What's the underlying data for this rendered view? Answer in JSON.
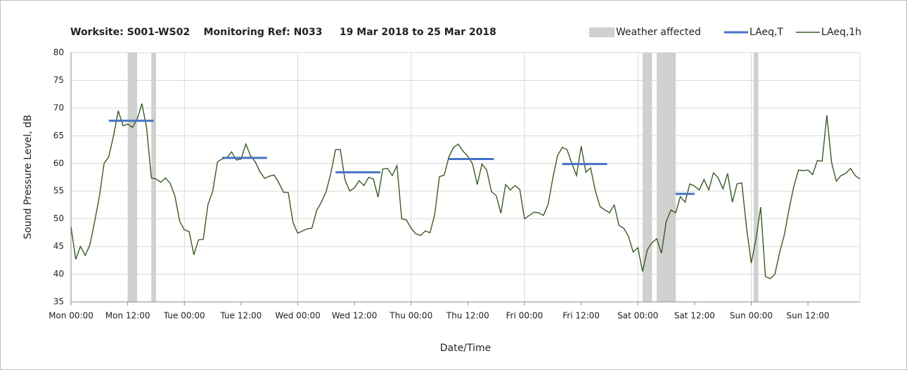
{
  "chart_data": {
    "type": "line",
    "title": "Worksite: S001-WS02    Monitoring Ref: N033     19 Mar 2018 to 25 Mar 2018",
    "xlabel": "Date/Time",
    "ylabel": "Sound Pressure Level, dB",
    "legend": "top-right",
    "grid": true,
    "xlim": [
      0,
      167
    ],
    "ylim": [
      35,
      80
    ],
    "yticks": [
      35,
      40,
      45,
      50,
      55,
      60,
      65,
      70,
      75,
      80
    ],
    "xticks": [
      {
        "value": 0,
        "label": "Mon 00:00"
      },
      {
        "value": 12,
        "label": "Mon 12:00"
      },
      {
        "value": 24,
        "label": "Tue 00:00"
      },
      {
        "value": 36,
        "label": "Tue 12:00"
      },
      {
        "value": 48,
        "label": "Wed 00:00"
      },
      {
        "value": 60,
        "label": "Wed 12:00"
      },
      {
        "value": 72,
        "label": "Thu 00:00"
      },
      {
        "value": 84,
        "label": "Thu 12:00"
      },
      {
        "value": 96,
        "label": "Fri 00:00"
      },
      {
        "value": 108,
        "label": "Fri 12:00"
      },
      {
        "value": 120,
        "label": "Sat 00:00"
      },
      {
        "value": 132,
        "label": "Sat 12:00"
      },
      {
        "value": 144,
        "label": "Sun 00:00"
      },
      {
        "value": 156,
        "label": "Sun 12:00"
      }
    ],
    "bands": {
      "name": "Weather affected",
      "color": "#d0d0d0",
      "ranges": [
        [
          12,
          14
        ],
        [
          17,
          18
        ],
        [
          121,
          123
        ],
        [
          124,
          128
        ],
        [
          144.5,
          145.5
        ]
      ]
    },
    "levels": {
      "name": "LAeq,T",
      "color": "#4472c4",
      "ranges": [
        [
          8,
          17.5
        ],
        [
          32,
          41.5
        ],
        [
          56,
          65.5
        ],
        [
          80,
          89.5
        ],
        [
          104,
          113.5
        ],
        [
          128,
          132
        ]
      ],
      "values": [
        67.7,
        61,
        58.4,
        60.8,
        59.9,
        54.5
      ]
    },
    "series": [
      {
        "name": "LAeq,1h",
        "color": "#3a5a24",
        "x": [
          0,
          1,
          2,
          3,
          4,
          5,
          6,
          7,
          8,
          9,
          10,
          11,
          12,
          13,
          14,
          15,
          16,
          17,
          18,
          19,
          20,
          21,
          22,
          23,
          24,
          25,
          26,
          27,
          28,
          29,
          30,
          31,
          32,
          33,
          34,
          35,
          36,
          37,
          38,
          39,
          40,
          41,
          42,
          43,
          44,
          45,
          46,
          47,
          48,
          49,
          50,
          51,
          52,
          53,
          54,
          55,
          56,
          57,
          58,
          59,
          60,
          61,
          62,
          63,
          64,
          65,
          66,
          67,
          68,
          69,
          70,
          71,
          72,
          73,
          74,
          75,
          76,
          77,
          78,
          79,
          80,
          81,
          82,
          83,
          84,
          85,
          86,
          87,
          88,
          89,
          90,
          91,
          92,
          93,
          94,
          95,
          96,
          97,
          98,
          99,
          100,
          101,
          102,
          103,
          104,
          105,
          106,
          107,
          108,
          109,
          110,
          111,
          112,
          113,
          114,
          115,
          116,
          117,
          118,
          119,
          120,
          121,
          122,
          123,
          124,
          125,
          126,
          127,
          128,
          129,
          130,
          131,
          132,
          133,
          134,
          135,
          136,
          137,
          138,
          139,
          140,
          141,
          142,
          143,
          144,
          145,
          146,
          147,
          148,
          149,
          150,
          151,
          152,
          153,
          154,
          155,
          156,
          157,
          158,
          159,
          160,
          161,
          162,
          163,
          164,
          165,
          166,
          167
        ],
        "values": [
          48.5,
          42.7,
          45,
          43.4,
          45.3,
          49.5,
          54,
          60,
          61.2,
          65,
          69.5,
          66.8,
          67.1,
          66.5,
          68,
          70.8,
          66.5,
          57.4,
          57.2,
          56.6,
          57.4,
          56.4,
          54.1,
          49.6,
          48,
          47.7,
          43.5,
          46.2,
          46.3,
          52.6,
          55,
          60.3,
          60.8,
          61,
          62.1,
          60.6,
          60.8,
          63.5,
          61.4,
          60.3,
          58.5,
          57.3,
          57.7,
          57.9,
          56.5,
          54.8,
          54.7,
          49.3,
          47.4,
          47.8,
          48.2,
          48.3,
          51.5,
          53,
          54.9,
          58.2,
          62.5,
          62.5,
          57,
          55,
          55.6,
          56.9,
          56,
          57.5,
          57.2,
          53.9,
          59,
          59.1,
          57.8,
          59.6,
          50,
          49.8,
          48.3,
          47.3,
          47,
          47.8,
          47.5,
          50.8,
          57.6,
          57.9,
          61.2,
          62.9,
          63.5,
          62.2,
          61.3,
          59.9,
          56.2,
          59.9,
          58.8,
          54.9,
          54.2,
          51,
          56.2,
          55.2,
          56,
          55.3,
          50,
          50.6,
          51.2,
          51.1,
          50.6,
          52.6,
          57.4,
          61.4,
          62.9,
          62.5,
          60.1,
          57.8,
          63.1,
          58.4,
          59.2,
          55,
          52.2,
          51.6,
          51.1,
          52.5,
          48.8,
          48.3,
          46.9,
          44,
          44.8,
          40.5,
          44.4,
          45.7,
          46.4,
          43.8,
          49.5,
          51.6,
          51.1,
          54,
          53,
          56.3,
          55.9,
          55.2,
          57.1,
          55.2,
          58.3,
          57.4,
          55.4,
          58.2,
          53,
          56.3,
          56.5,
          48.4,
          42,
          46.4,
          52.1,
          39.6,
          39.2,
          40,
          43.9,
          47.1,
          51.7,
          55.8,
          58.8,
          58.7,
          58.8,
          58,
          60.5,
          60.4,
          68.7,
          60.2,
          56.8,
          57.8,
          58.2,
          59.1,
          57.8,
          57.2
        ]
      }
    ]
  }
}
